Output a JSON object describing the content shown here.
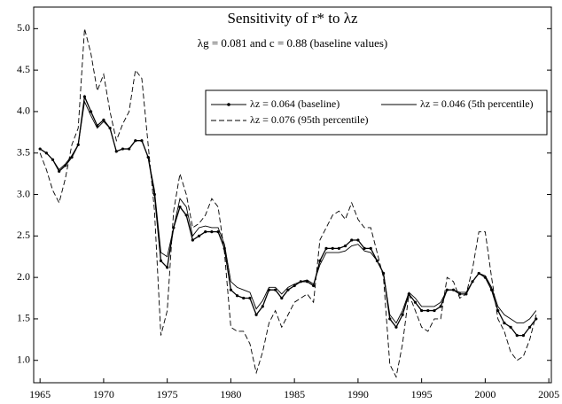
{
  "chart_data": {
    "type": "line",
    "title": "Sensitivity of r* to λz",
    "subtitle": "λg = 0.081 and c = 0.88 (baseline values)",
    "x": [
      1965,
      1965.5,
      1966,
      1966.5,
      1967,
      1967.5,
      1968,
      1968.5,
      1969,
      1969.5,
      1970,
      1970.5,
      1971,
      1971.5,
      1972,
      1972.5,
      1973,
      1973.5,
      1974,
      1974.5,
      1975,
      1975.5,
      1976,
      1976.5,
      1977,
      1977.5,
      1978,
      1978.5,
      1979,
      1979.5,
      1980,
      1980.5,
      1981,
      1981.5,
      1982,
      1982.5,
      1983,
      1983.5,
      1984,
      1984.5,
      1985,
      1985.5,
      1986,
      1986.5,
      1987,
      1987.5,
      1988,
      1988.5,
      1989,
      1989.5,
      1990,
      1990.5,
      1991,
      1991.5,
      1992,
      1992.5,
      1993,
      1993.5,
      1994,
      1994.5,
      1995,
      1995.5,
      1996,
      1996.5,
      1997,
      1997.5,
      1998,
      1998.5,
      1999,
      1999.5,
      2000,
      2000.5,
      2001,
      2001.5,
      2002,
      2002.5,
      2003,
      2003.5,
      2004
    ],
    "series": [
      {
        "name": "λz = 0.064 (baseline)",
        "color": "#000000",
        "style": "marker",
        "values": [
          3.55,
          3.5,
          3.42,
          3.28,
          3.35,
          3.45,
          3.6,
          4.18,
          4.0,
          3.83,
          3.9,
          3.8,
          3.52,
          3.55,
          3.55,
          3.65,
          3.65,
          3.45,
          3.0,
          2.2,
          2.12,
          2.6,
          2.85,
          2.75,
          2.45,
          2.5,
          2.55,
          2.55,
          2.55,
          2.35,
          1.85,
          1.78,
          1.75,
          1.75,
          1.55,
          1.65,
          1.85,
          1.85,
          1.75,
          1.85,
          1.9,
          1.95,
          1.95,
          1.9,
          2.2,
          2.35,
          2.35,
          2.35,
          2.38,
          2.45,
          2.45,
          2.35,
          2.35,
          2.2,
          2.05,
          1.5,
          1.4,
          1.55,
          1.8,
          1.7,
          1.6,
          1.6,
          1.6,
          1.65,
          1.85,
          1.85,
          1.8,
          1.8,
          1.95,
          2.05,
          2.0,
          1.85,
          1.6,
          1.45,
          1.4,
          1.3,
          1.3,
          1.4,
          1.5
        ]
      },
      {
        "name": "λz = 0.046 (5th percentile)",
        "color": "#000000",
        "style": "solid",
        "values": [
          3.55,
          3.5,
          3.42,
          3.3,
          3.37,
          3.47,
          3.6,
          4.12,
          3.95,
          3.8,
          3.88,
          3.8,
          3.52,
          3.55,
          3.55,
          3.65,
          3.65,
          3.45,
          3.05,
          2.3,
          2.25,
          2.6,
          2.95,
          2.85,
          2.5,
          2.6,
          2.62,
          2.6,
          2.6,
          2.4,
          1.95,
          1.88,
          1.85,
          1.82,
          1.62,
          1.72,
          1.88,
          1.88,
          1.8,
          1.88,
          1.92,
          1.95,
          1.97,
          1.92,
          2.15,
          2.3,
          2.3,
          2.3,
          2.32,
          2.38,
          2.4,
          2.32,
          2.3,
          2.2,
          2.05,
          1.55,
          1.45,
          1.6,
          1.82,
          1.75,
          1.65,
          1.65,
          1.65,
          1.7,
          1.85,
          1.85,
          1.82,
          1.82,
          1.95,
          2.05,
          2.02,
          1.88,
          1.65,
          1.55,
          1.5,
          1.45,
          1.45,
          1.5,
          1.6
        ]
      },
      {
        "name": "λz = 0.076 (95th percentile)",
        "color": "#000000",
        "style": "dashed",
        "values": [
          3.5,
          3.3,
          3.05,
          2.9,
          3.2,
          3.6,
          3.8,
          5.0,
          4.7,
          4.25,
          4.45,
          4.0,
          3.65,
          3.85,
          4.0,
          4.5,
          4.4,
          3.6,
          2.8,
          1.3,
          1.6,
          2.8,
          3.25,
          3.0,
          2.6,
          2.65,
          2.75,
          2.95,
          2.85,
          2.3,
          1.4,
          1.35,
          1.35,
          1.2,
          0.85,
          1.1,
          1.45,
          1.6,
          1.4,
          1.55,
          1.7,
          1.75,
          1.8,
          1.7,
          2.45,
          2.6,
          2.75,
          2.8,
          2.7,
          2.9,
          2.7,
          2.6,
          2.6,
          2.3,
          2.0,
          0.95,
          0.8,
          1.2,
          1.8,
          1.6,
          1.4,
          1.35,
          1.5,
          1.5,
          2.0,
          1.95,
          1.75,
          1.8,
          2.1,
          2.55,
          2.55,
          2.0,
          1.5,
          1.35,
          1.1,
          1.0,
          1.05,
          1.25,
          1.55
        ]
      }
    ],
    "xlim": [
      1964.5,
      2005.2
    ],
    "ylim": [
      0.73,
      5.26
    ],
    "xticks": [
      1965,
      1970,
      1975,
      1980,
      1985,
      1990,
      1995,
      2000,
      2005
    ],
    "yticks": [
      {
        "value": 1,
        "label": "1.0"
      },
      1.5,
      {
        "value": 2,
        "label": "2.0"
      },
      2.5,
      {
        "value": 3,
        "label": "3.0"
      },
      3.5,
      {
        "value": 4,
        "label": "4.0"
      },
      4.5,
      {
        "value": 5,
        "label": "5.0"
      }
    ],
    "grid": false
  }
}
